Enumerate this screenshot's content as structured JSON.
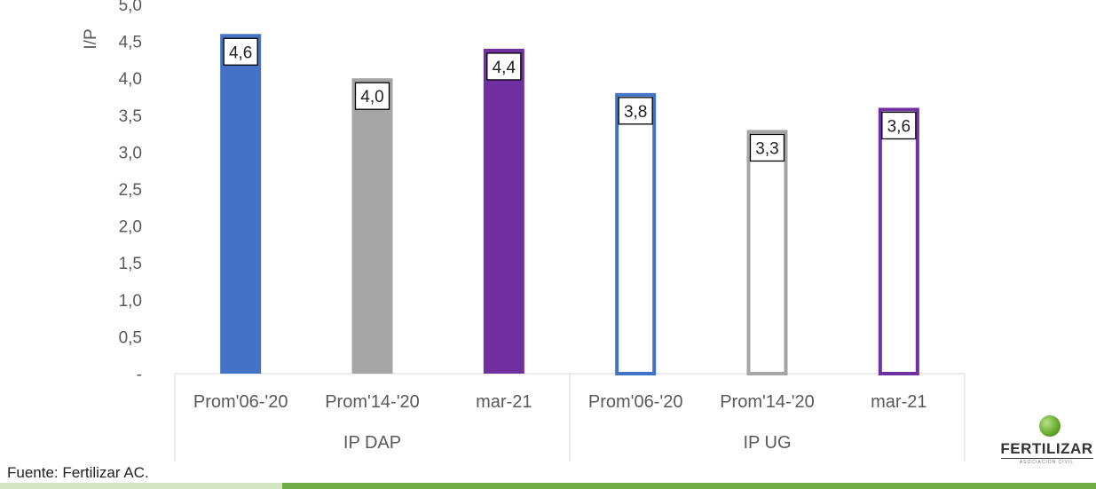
{
  "chart_data": {
    "type": "bar",
    "ylabel": "I/P",
    "ylim": [
      0,
      5
    ],
    "yticks": [
      {
        "value": 0,
        "label": "-"
      },
      {
        "value": 0.5,
        "label": "0,5"
      },
      {
        "value": 1.0,
        "label": "1,0"
      },
      {
        "value": 1.5,
        "label": "1,5"
      },
      {
        "value": 2.0,
        "label": "2,0"
      },
      {
        "value": 2.5,
        "label": "2,5"
      },
      {
        "value": 3.0,
        "label": "3,0"
      },
      {
        "value": 3.5,
        "label": "3,5"
      },
      {
        "value": 4.0,
        "label": "4,0"
      },
      {
        "value": 4.5,
        "label": "4,5"
      },
      {
        "value": 5.0,
        "label": "5,0"
      }
    ],
    "groups": [
      {
        "name": "IP DAP",
        "bars": [
          {
            "category": "Prom'06-'20",
            "value": 4.6,
            "label": "4,6",
            "color": "#4472c4",
            "filled": true
          },
          {
            "category": "Prom'14-'20",
            "value": 4.0,
            "label": "4,0",
            "color": "#a5a5a5",
            "filled": true
          },
          {
            "category": "mar-21",
            "value": 4.4,
            "label": "4,4",
            "color": "#7030a0",
            "filled": true
          }
        ]
      },
      {
        "name": "IP UG",
        "bars": [
          {
            "category": "Prom'06-'20",
            "value": 3.8,
            "label": "3,8",
            "color": "#4472c4",
            "filled": false
          },
          {
            "category": "Prom'14-'20",
            "value": 3.3,
            "label": "3,3",
            "color": "#a5a5a5",
            "filled": false
          },
          {
            "category": "mar-21",
            "value": 3.6,
            "label": "3,6",
            "color": "#7030a0",
            "filled": false
          }
        ]
      }
    ]
  },
  "footer": {
    "source": "Fuente: Fertilizar AC."
  },
  "logo": {
    "name": "FERTILIZAR",
    "subtitle": "ASOCIACION CIVIL"
  },
  "colors": {
    "axis": "#d9d9d9",
    "tick_text": "#595959",
    "accent_green": "#70ad47",
    "accent_green_light": "#d4e5c3"
  }
}
